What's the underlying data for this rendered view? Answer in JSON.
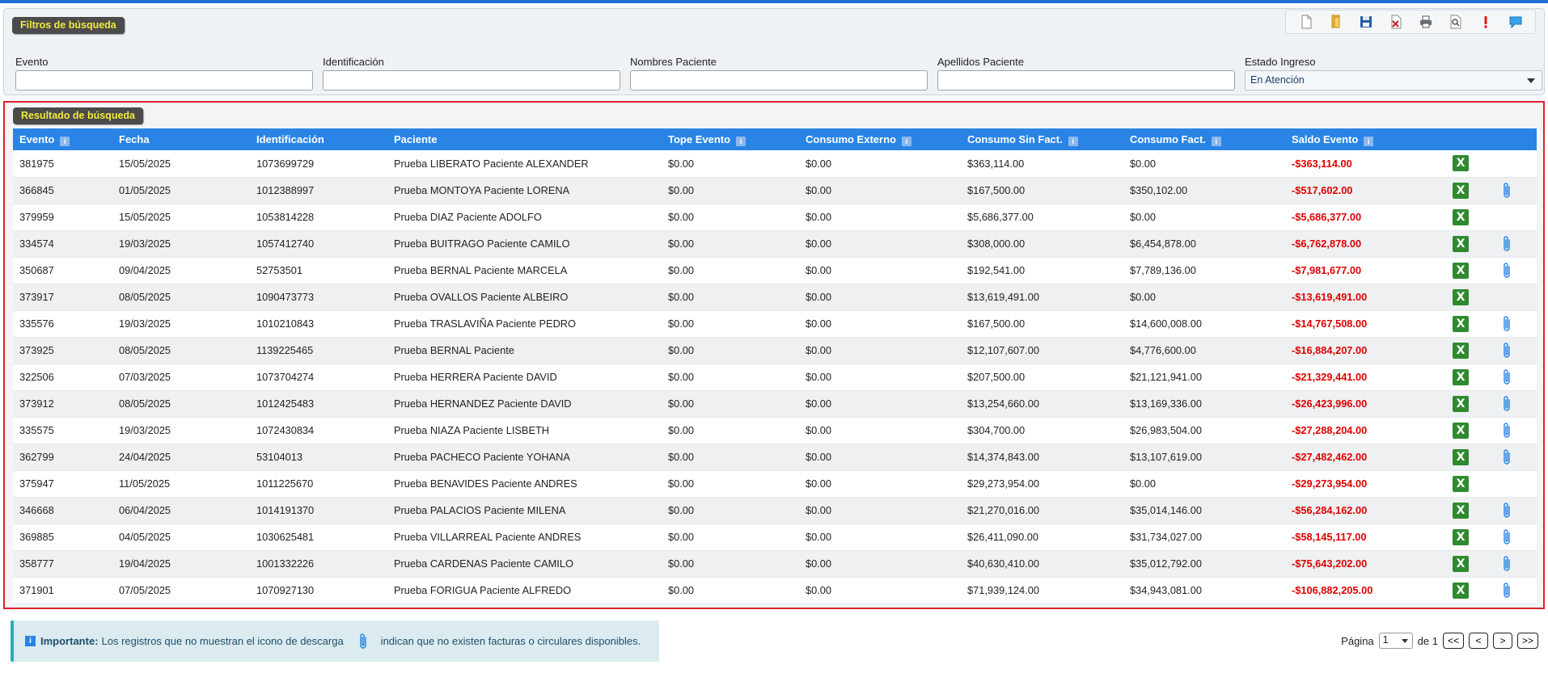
{
  "filters": {
    "legend": "Filtros de búsqueda",
    "fields": {
      "evento": {
        "label": "Evento",
        "value": ""
      },
      "identificacion": {
        "label": "Identificación",
        "value": ""
      },
      "nombres": {
        "label": "Nombres Paciente",
        "value": ""
      },
      "apellidos": {
        "label": "Apellidos Paciente",
        "value": ""
      },
      "estado": {
        "label": "Estado Ingreso",
        "value": "En Atención"
      }
    }
  },
  "toolbar": {
    "icons": [
      "new-document-icon",
      "open-folder-icon",
      "save-icon",
      "delete-icon",
      "print-icon",
      "preview-icon",
      "alert-icon",
      "chat-icon"
    ]
  },
  "results": {
    "legend": "Resultado de búsqueda",
    "columns": [
      "Evento",
      "Fecha",
      "Identificación",
      "Paciente",
      "Tope Evento",
      "Consumo Externo",
      "Consumo Sin Fact.",
      "Consumo Fact.",
      "Saldo Evento"
    ],
    "columns_with_info": [
      true,
      false,
      false,
      false,
      true,
      true,
      true,
      true,
      true
    ],
    "rows": [
      {
        "evento": "381975",
        "fecha": "15/05/2025",
        "identificacion": "1073699729",
        "paciente": "Prueba LIBERATO Paciente ALEXANDER",
        "tope": "$0.00",
        "externo": "$0.00",
        "sin_fact": "$363,114.00",
        "fact": "$0.00",
        "saldo": "-$363,114.00",
        "download": false
      },
      {
        "evento": "366845",
        "fecha": "01/05/2025",
        "identificacion": "1012388997",
        "paciente": "Prueba MONTOYA Paciente LORENA",
        "tope": "$0.00",
        "externo": "$0.00",
        "sin_fact": "$167,500.00",
        "fact": "$350,102.00",
        "saldo": "-$517,602.00",
        "download": true
      },
      {
        "evento": "379959",
        "fecha": "15/05/2025",
        "identificacion": "1053814228",
        "paciente": "Prueba DIAZ Paciente ADOLFO",
        "tope": "$0.00",
        "externo": "$0.00",
        "sin_fact": "$5,686,377.00",
        "fact": "$0.00",
        "saldo": "-$5,686,377.00",
        "download": false
      },
      {
        "evento": "334574",
        "fecha": "19/03/2025",
        "identificacion": "1057412740",
        "paciente": "Prueba BUITRAGO Paciente CAMILO",
        "tope": "$0.00",
        "externo": "$0.00",
        "sin_fact": "$308,000.00",
        "fact": "$6,454,878.00",
        "saldo": "-$6,762,878.00",
        "download": true
      },
      {
        "evento": "350687",
        "fecha": "09/04/2025",
        "identificacion": "52753501",
        "paciente": "Prueba BERNAL Paciente MARCELA",
        "tope": "$0.00",
        "externo": "$0.00",
        "sin_fact": "$192,541.00",
        "fact": "$7,789,136.00",
        "saldo": "-$7,981,677.00",
        "download": true
      },
      {
        "evento": "373917",
        "fecha": "08/05/2025",
        "identificacion": "1090473773",
        "paciente": "Prueba OVALLOS Paciente ALBEIRO",
        "tope": "$0.00",
        "externo": "$0.00",
        "sin_fact": "$13,619,491.00",
        "fact": "$0.00",
        "saldo": "-$13,619,491.00",
        "download": false
      },
      {
        "evento": "335576",
        "fecha": "19/03/2025",
        "identificacion": "1010210843",
        "paciente": "Prueba TRASLAVIÑA Paciente PEDRO",
        "tope": "$0.00",
        "externo": "$0.00",
        "sin_fact": "$167,500.00",
        "fact": "$14,600,008.00",
        "saldo": "-$14,767,508.00",
        "download": true
      },
      {
        "evento": "373925",
        "fecha": "08/05/2025",
        "identificacion": "1139225465",
        "paciente": "Prueba BERNAL Paciente",
        "tope": "$0.00",
        "externo": "$0.00",
        "sin_fact": "$12,107,607.00",
        "fact": "$4,776,600.00",
        "saldo": "-$16,884,207.00",
        "download": true
      },
      {
        "evento": "322506",
        "fecha": "07/03/2025",
        "identificacion": "1073704274",
        "paciente": "Prueba HERRERA Paciente DAVID",
        "tope": "$0.00",
        "externo": "$0.00",
        "sin_fact": "$207,500.00",
        "fact": "$21,121,941.00",
        "saldo": "-$21,329,441.00",
        "download": true
      },
      {
        "evento": "373912",
        "fecha": "08/05/2025",
        "identificacion": "1012425483",
        "paciente": "Prueba HERNANDEZ Paciente DAVID",
        "tope": "$0.00",
        "externo": "$0.00",
        "sin_fact": "$13,254,660.00",
        "fact": "$13,169,336.00",
        "saldo": "-$26,423,996.00",
        "download": true
      },
      {
        "evento": "335575",
        "fecha": "19/03/2025",
        "identificacion": "1072430834",
        "paciente": "Prueba NIAZA Paciente LISBETH",
        "tope": "$0.00",
        "externo": "$0.00",
        "sin_fact": "$304,700.00",
        "fact": "$26,983,504.00",
        "saldo": "-$27,288,204.00",
        "download": true
      },
      {
        "evento": "362799",
        "fecha": "24/04/2025",
        "identificacion": "53104013",
        "paciente": "Prueba PACHECO Paciente YOHANA",
        "tope": "$0.00",
        "externo": "$0.00",
        "sin_fact": "$14,374,843.00",
        "fact": "$13,107,619.00",
        "saldo": "-$27,482,462.00",
        "download": true
      },
      {
        "evento": "375947",
        "fecha": "11/05/2025",
        "identificacion": "1011225670",
        "paciente": "Prueba BENAVIDES Paciente ANDRES",
        "tope": "$0.00",
        "externo": "$0.00",
        "sin_fact": "$29,273,954.00",
        "fact": "$0.00",
        "saldo": "-$29,273,954.00",
        "download": false
      },
      {
        "evento": "346668",
        "fecha": "06/04/2025",
        "identificacion": "1014191370",
        "paciente": "Prueba PALACIOS Paciente MILENA",
        "tope": "$0.00",
        "externo": "$0.00",
        "sin_fact": "$21,270,016.00",
        "fact": "$35,014,146.00",
        "saldo": "-$56,284,162.00",
        "download": true
      },
      {
        "evento": "369885",
        "fecha": "04/05/2025",
        "identificacion": "1030625481",
        "paciente": "Prueba VILLARREAL Paciente ANDRES",
        "tope": "$0.00",
        "externo": "$0.00",
        "sin_fact": "$26,411,090.00",
        "fact": "$31,734,027.00",
        "saldo": "-$58,145,117.00",
        "download": true
      },
      {
        "evento": "358777",
        "fecha": "19/04/2025",
        "identificacion": "1001332226",
        "paciente": "Prueba CARDENAS Paciente CAMILO",
        "tope": "$0.00",
        "externo": "$0.00",
        "sin_fact": "$40,630,410.00",
        "fact": "$35,012,792.00",
        "saldo": "-$75,643,202.00",
        "download": true
      },
      {
        "evento": "371901",
        "fecha": "07/05/2025",
        "identificacion": "1070927130",
        "paciente": "Prueba FORIGUA Paciente ALFREDO",
        "tope": "$0.00",
        "externo": "$0.00",
        "sin_fact": "$71,939,124.00",
        "fact": "$34,943,081.00",
        "saldo": "-$106,882,205.00",
        "download": true
      }
    ]
  },
  "note": {
    "strong": "Importante:",
    "text_before": "Los registros que no muestran el icono de descarga",
    "text_after": "indican que no existen facturas o circulares disponibles."
  },
  "pager": {
    "label": "Página",
    "current": "1",
    "of_label": "de 1",
    "buttons": [
      "<<",
      "<",
      ">",
      ">>"
    ]
  },
  "colors": {
    "accent": "#2a84e6",
    "saldo": "#e00000",
    "legend_bg": "#4b4b4b",
    "legend_text": "#f2ea3c",
    "excel": "#2f8a2f"
  }
}
